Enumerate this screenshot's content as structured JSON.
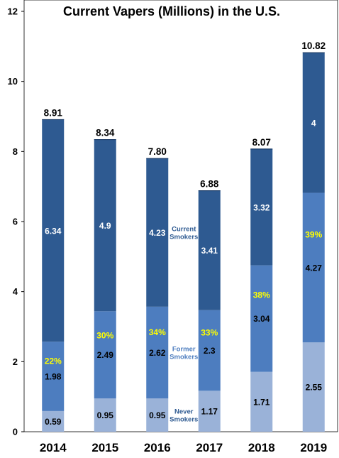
{
  "colors": {
    "never": "#9ab2d8",
    "former": "#4d7dbf",
    "current": "#2e5a91",
    "pct": "#ffff00",
    "never_label": "#2e5a91",
    "former_label": "#4d7dbf",
    "current_label": "#2e5a91"
  },
  "chart_data": {
    "type": "bar",
    "stacked": true,
    "title": "Current Vapers (Millions) in the U.S.",
    "categories": [
      "2014",
      "2015",
      "2016",
      "2017",
      "2018",
      "2019"
    ],
    "ylim": [
      0,
      12
    ],
    "yticks": [
      "0",
      "2",
      "4",
      "6",
      "8",
      "10",
      "12"
    ],
    "grid": false,
    "series": [
      {
        "name": "Never Smokers",
        "values": [
          0.59,
          0.95,
          0.95,
          1.17,
          1.71,
          2.55
        ],
        "labels": [
          "0.59",
          "0.95",
          "0.95",
          "1.17",
          "1.71",
          "2.55"
        ]
      },
      {
        "name": "Former Smokers",
        "values": [
          1.98,
          2.49,
          2.62,
          2.3,
          3.04,
          4.27
        ],
        "labels": [
          "1.98",
          "2.49",
          "2.62",
          "2.3",
          "3.04",
          "4.27"
        ]
      },
      {
        "name": "Current Smokers",
        "values": [
          6.34,
          4.9,
          4.23,
          3.41,
          3.32,
          4
        ],
        "labels": [
          "6.34",
          "4.9",
          "4.23",
          "3.41",
          "3.32",
          "4"
        ]
      }
    ],
    "totals": [
      8.91,
      8.34,
      7.8,
      6.88,
      8.07,
      10.82
    ],
    "total_labels": [
      "8.91",
      "8.34",
      "7.80",
      "6.88",
      "8.07",
      "10.82"
    ],
    "former_share_labels": [
      "22%",
      "30%",
      "34%",
      "33%",
      "38%",
      "39%"
    ],
    "series_labels": [
      {
        "series": 2,
        "bar": 2,
        "lines": [
          "Current",
          "Smokers"
        ]
      },
      {
        "series": 1,
        "bar": 2,
        "lines": [
          "Former",
          "Smokers"
        ]
      },
      {
        "series": 0,
        "bar": 2,
        "lines": [
          "Never",
          "Smokers"
        ]
      }
    ]
  }
}
